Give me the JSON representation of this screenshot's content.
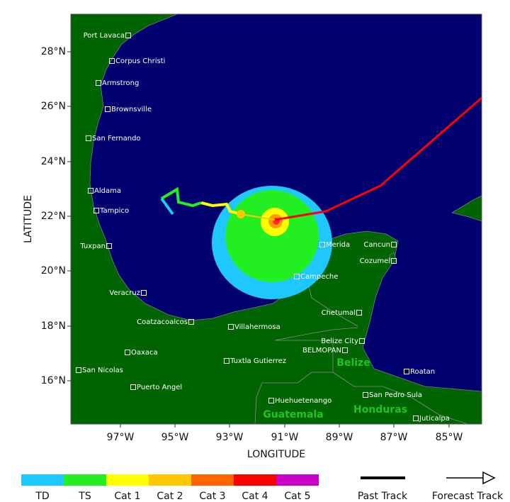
{
  "map": {
    "y_axis_label": "LATITUDE",
    "x_axis_label": "LONGITUDE",
    "lat_ticks": [
      "28°N",
      "26°N",
      "24°N",
      "22°N",
      "20°N",
      "18°N",
      "16°N"
    ],
    "lon_ticks": [
      "97°W",
      "95°W",
      "93°W",
      "91°W",
      "89°W",
      "87°W",
      "85°W"
    ],
    "cities": [
      "Port Lavaca",
      "Corpus Christi",
      "Armstrong",
      "Brownsville",
      "San Fernando",
      "Aldama",
      "Tampico",
      "Tuxpan",
      "Veracruz",
      "Coatzacoalcos",
      "Villahermosa",
      "Oaxaca",
      "Tuxtla Gutierrez",
      "San Nicolas",
      "Puerto Angel",
      "Huehuetenango",
      "Campeche",
      "Merida",
      "Cancun",
      "Cozumel",
      "Chetumal",
      "Belize City",
      "BELMOPAN",
      "Roatan",
      "San Pedro Sula",
      "Juticalpa"
    ],
    "countries": [
      "Belize",
      "Guatemala",
      "Honduras"
    ]
  },
  "legend": {
    "categories": [
      "TD",
      "TS",
      "Cat 1",
      "Cat 2",
      "Cat 3",
      "Cat 4",
      "Cat 5"
    ],
    "past_track": "Past Track",
    "forecast_track": "Forecast Track"
  }
}
